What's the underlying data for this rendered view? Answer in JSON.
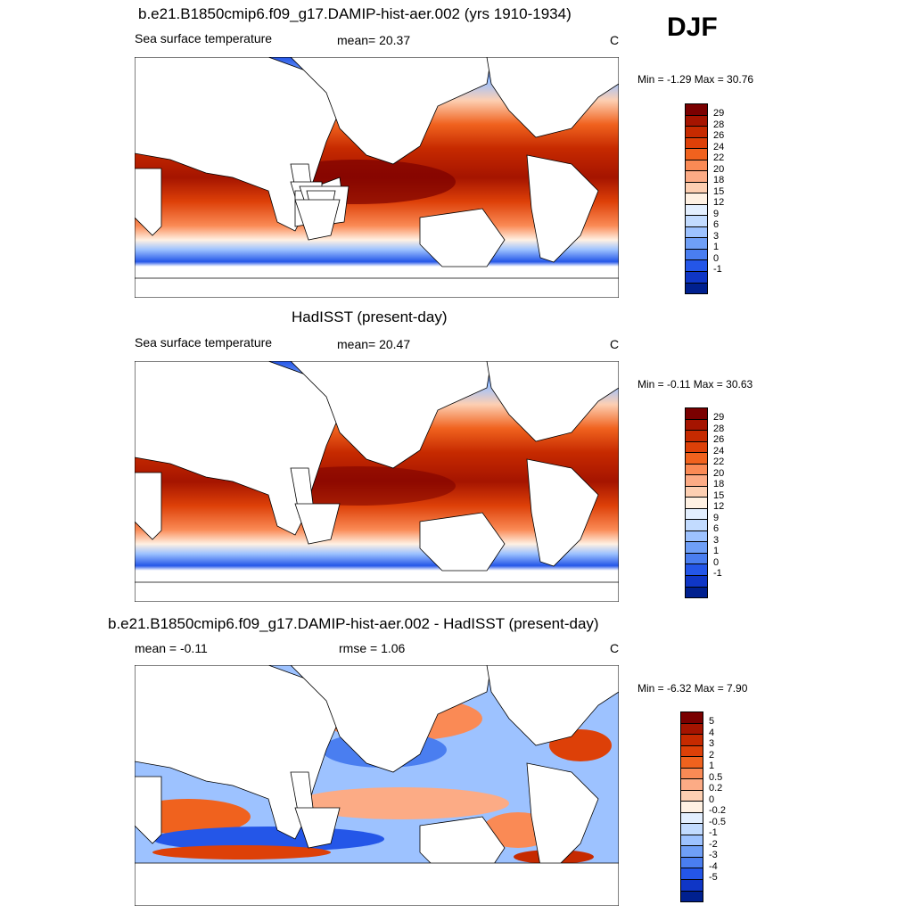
{
  "season": "DJF",
  "panels": [
    {
      "title": "b.e21.B1850cmip6.f09_g17.DAMIP-hist-aer.002 (yrs 1910-1934)",
      "left_label": "Sea surface temperature",
      "center_label": "mean=  20.37",
      "units": "C",
      "minmax": "Min =  -1.29 Max =  30.76",
      "colorbar_labels": [
        "29",
        "28",
        "26",
        "24",
        "22",
        "20",
        "18",
        "15",
        "12",
        "9",
        "6",
        "3",
        "1",
        "0",
        "-1"
      ],
      "colorbar_colors": [
        "#7a0000",
        "#a51400",
        "#c62a00",
        "#dd4008",
        "#f0621e",
        "#fa8a55",
        "#fcab85",
        "#fdcfb2",
        "#fff1e3",
        "#e3efff",
        "#c2dbff",
        "#9dc2ff",
        "#6f9ff7",
        "#4a7ef0",
        "#2456e8",
        "#0f36c6",
        "#00208f"
      ]
    },
    {
      "title": "HadISST (present-day)",
      "left_label": "Sea surface temperature",
      "center_label": "mean=  20.47",
      "units": "C",
      "minmax": "Min =  -0.11 Max =  30.63",
      "colorbar_labels": [
        "29",
        "28",
        "26",
        "24",
        "22",
        "20",
        "18",
        "15",
        "12",
        "9",
        "6",
        "3",
        "1",
        "0",
        "-1"
      ],
      "colorbar_colors": [
        "#7a0000",
        "#a51400",
        "#c62a00",
        "#dd4008",
        "#f0621e",
        "#fa8a55",
        "#fcab85",
        "#fdcfb2",
        "#fff1e3",
        "#e3efff",
        "#c2dbff",
        "#9dc2ff",
        "#6f9ff7",
        "#4a7ef0",
        "#2456e8",
        "#0f36c6",
        "#00208f"
      ]
    },
    {
      "title": "b.e21.B1850cmip6.f09_g17.DAMIP-hist-aer.002 - HadISST (present-day)",
      "left_label": "mean =  -0.11",
      "center_label": "rmse =   1.06",
      "units": "C",
      "minmax": "Min =  -6.32 Max =   7.90",
      "colorbar_labels": [
        "5",
        "4",
        "3",
        "2",
        "1",
        "0.5",
        "0.2",
        "0",
        "-0.2",
        "-0.5",
        "-1",
        "-2",
        "-3",
        "-4",
        "-5"
      ],
      "colorbar_colors": [
        "#7a0000",
        "#a51400",
        "#c62a00",
        "#dd4008",
        "#f0621e",
        "#fa8a55",
        "#fcab85",
        "#fdcfb2",
        "#fff1e3",
        "#e3efff",
        "#c2dbff",
        "#9dc2ff",
        "#6f9ff7",
        "#4a7ef0",
        "#2456e8",
        "#0f36c6",
        "#00208f"
      ]
    }
  ]
}
